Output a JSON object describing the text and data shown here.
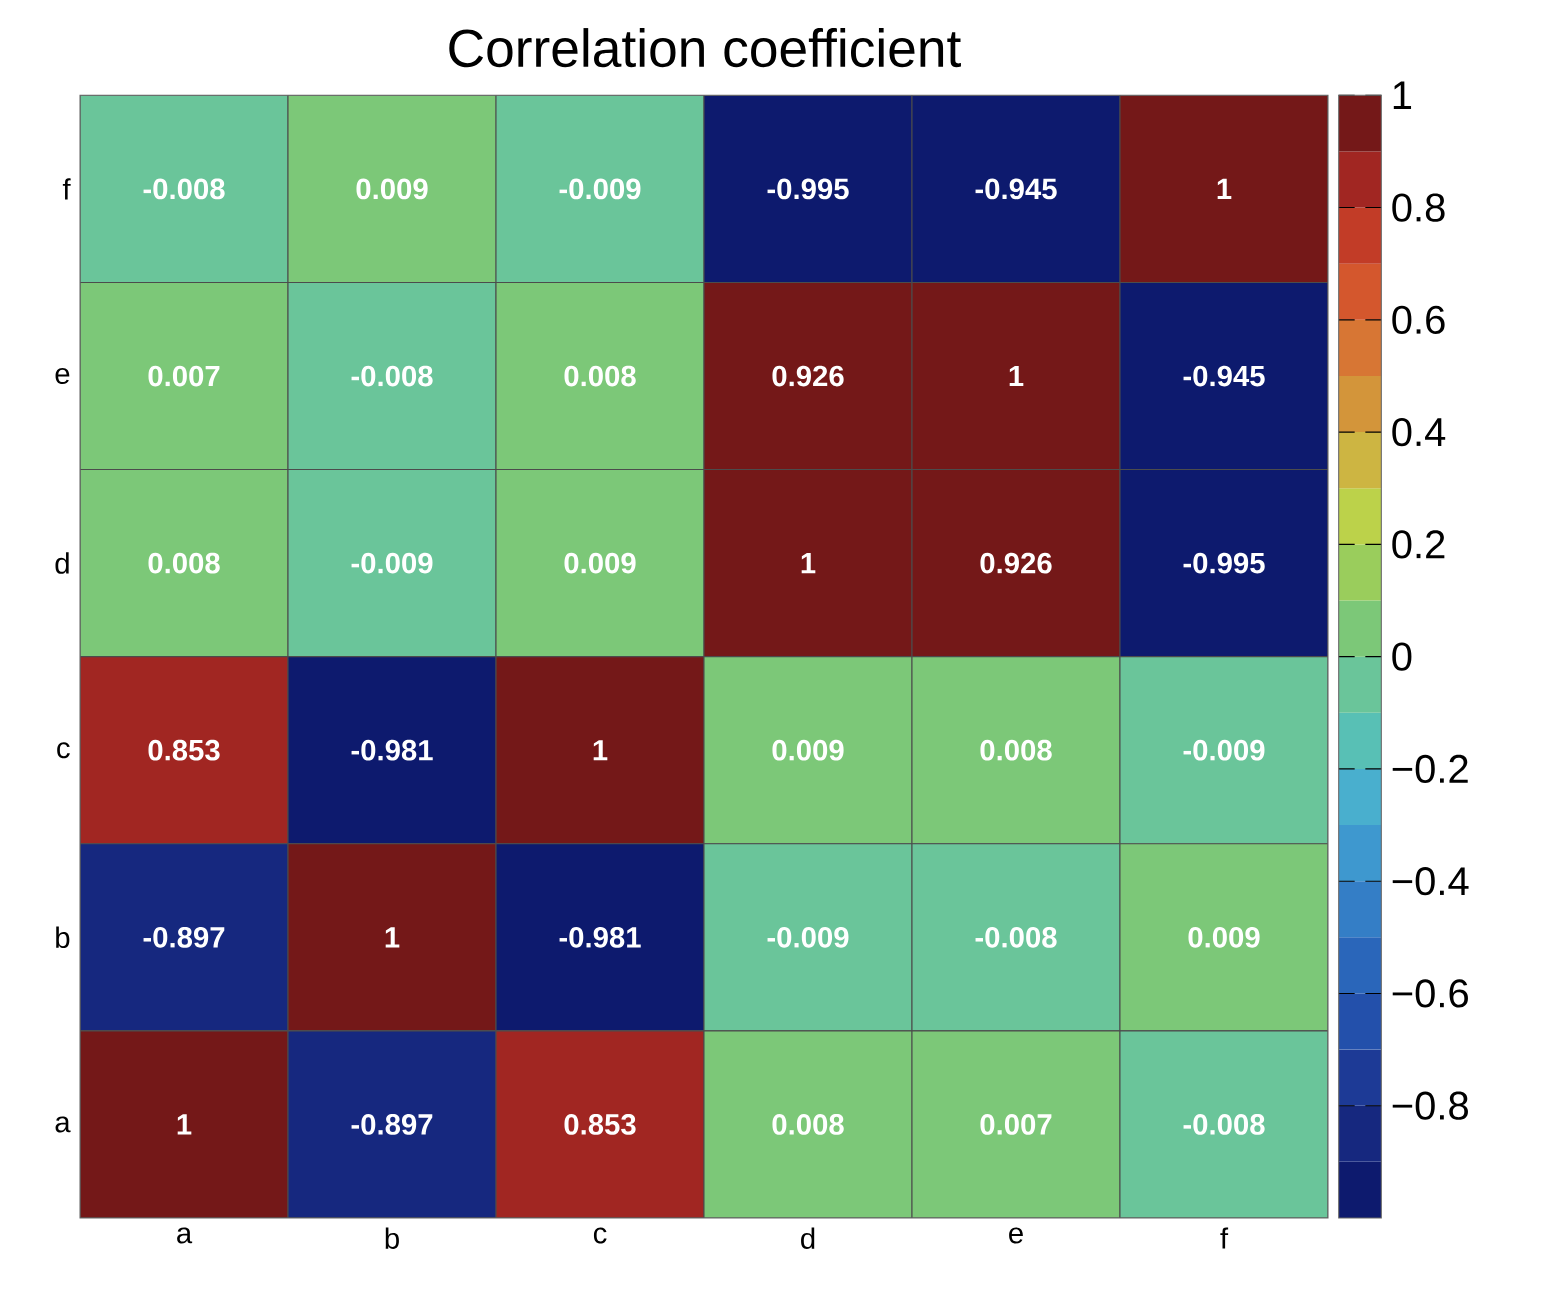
{
  "chart_data": {
    "type": "heatmap",
    "title": "Correlation coefficient",
    "categories": [
      "a",
      "b",
      "c",
      "d",
      "e",
      "f"
    ],
    "y_categories": [
      "f",
      "e",
      "d",
      "c",
      "b",
      "a"
    ],
    "cells": [
      [
        -0.008,
        0.009,
        -0.009,
        -0.995,
        -0.945,
        1
      ],
      [
        0.007,
        -0.008,
        0.008,
        0.926,
        1,
        -0.945
      ],
      [
        0.008,
        -0.009,
        0.009,
        1,
        0.926,
        -0.995
      ],
      [
        0.853,
        -0.981,
        1,
        0.009,
        0.008,
        -0.009
      ],
      [
        -0.897,
        1,
        -0.981,
        -0.009,
        -0.008,
        0.009
      ],
      [
        1,
        -0.897,
        0.853,
        0.008,
        0.007,
        -0.008
      ]
    ],
    "clim": [
      -1,
      1
    ],
    "cticks": [
      1,
      0.8,
      0.6,
      0.4,
      0.2,
      0,
      {
        "value": -0.2,
        "label": "−0.2"
      },
      {
        "value": -0.4,
        "label": "−0.4"
      },
      {
        "value": -0.6,
        "label": "−0.6"
      },
      {
        "value": -0.8,
        "label": "−0.8"
      }
    ],
    "data_labels": true
  }
}
